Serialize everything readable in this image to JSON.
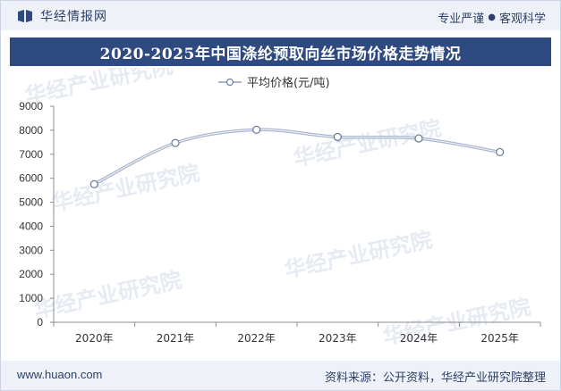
{
  "header": {
    "brand": "华经情报网",
    "tagline_left": "专业严谨",
    "tagline_sep": "●",
    "tagline_right": "客观科学"
  },
  "watermark": "华经产业研究院",
  "footer": {
    "website": "www.huaon.com",
    "source": "资料来源：公开资料，华经产业研究院整理"
  },
  "colors": {
    "title_bg": "#2f4a80",
    "line": "#a9b6cf",
    "marker_fill": "#ffffff",
    "marker_stroke": "#6e7f9e"
  },
  "chart_data": {
    "type": "line",
    "title": "2020-2025年中国涤纶预取向丝市场价格走势情况",
    "categories": [
      "2020年",
      "2021年",
      "2022年",
      "2023年",
      "2024年",
      "2025年"
    ],
    "series": [
      {
        "name": "平均价格(元/吨)",
        "values": [
          5750,
          7470,
          8020,
          7720,
          7660,
          7090
        ]
      }
    ],
    "ylim": [
      0,
      9000
    ],
    "yticks": [
      0,
      1000,
      2000,
      3000,
      4000,
      5000,
      6000,
      7000,
      8000,
      9000
    ],
    "grid": false,
    "legend_position": "top-center"
  }
}
